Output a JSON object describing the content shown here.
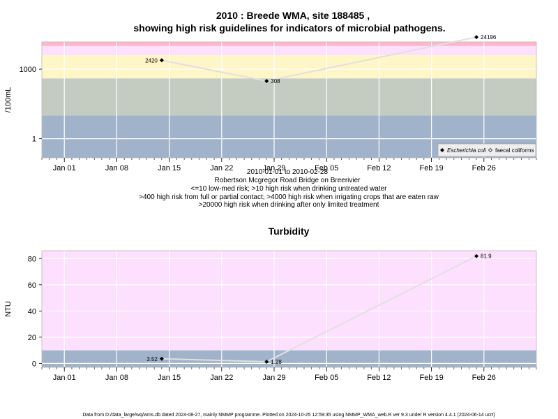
{
  "header": {
    "title_line1": "2010 : Breede WMA, site 188485 ,",
    "title_line2": "showing high risk guidelines for indicators of microbial pathogens."
  },
  "microbial_notes": [
    "2010-01-01 to 2010-02-28",
    "Robertson Mcgregor Road Bridge on Breerivier",
    "<=10 low-med risk; >10 high risk when drinking untreated water",
    ">400 high risk from full or partial contact; >4000 high risk when irrigating crops that are eaten raw",
    ">20000 high risk when drinking after only limited treatment"
  ],
  "footer": "Data from D:/data_large/wq/wms.db dated 2024-08-27, mainly NMMP programme. Plotted on 2024-10-25 12:59:35 using NMMP_WMA_web.R ver 9.3 under R version 4.4.1 (2024-06-14 ucrt)",
  "colors": {
    "band_blue": "#a1b3ca",
    "band_grey": "#c4cbc0",
    "band_yellow": "#fff6c8",
    "band_pink": "#fde0fd",
    "band_red": "#fdb7c9",
    "grid": "#ffffff",
    "line": "#e0e0e0",
    "point": "#000000"
  },
  "chart_data": [
    {
      "type": "line",
      "title": "2010 : Breede WMA, site 188485 , showing high risk guidelines for indicators of microbial pathogens.",
      "ylabel": "/100mL",
      "yscale": "log10",
      "ylim": [
        0.15,
        15000
      ],
      "yticks": [
        1,
        1000
      ],
      "ytick_labels": [
        "1",
        "1000"
      ],
      "xlim": [
        "2009-12-29",
        "2010-03-05"
      ],
      "xticks": [
        "2010-01-01",
        "2010-01-08",
        "2010-01-15",
        "2010-01-22",
        "2010-01-29",
        "2010-02-05",
        "2010-02-12",
        "2010-02-19",
        "2010-02-26"
      ],
      "xtick_labels": [
        "Jan 01",
        "Jan 08",
        "Jan 15",
        "Jan 22",
        "Jan 29",
        "Feb 05",
        "Feb 12",
        "Feb 19",
        "Feb 26"
      ],
      "bands": [
        {
          "from": 0.15,
          "to": 10,
          "color": "#a1b3ca"
        },
        {
          "from": 10,
          "to": 400,
          "color": "#c4cbc0"
        },
        {
          "from": 400,
          "to": 4000,
          "color": "#fff6c8"
        },
        {
          "from": 4000,
          "to": 10000,
          "color": "#fde0fd"
        },
        {
          "from": 10000,
          "to": 15000,
          "color": "#fdb7c9"
        }
      ],
      "series": [
        {
          "name": "Escherichia coli",
          "marker": "filled-diamond",
          "x": [
            "2010-01-14",
            "2010-01-28",
            "2010-02-25"
          ],
          "y": [
            2420,
            308,
            24196
          ],
          "labels": [
            "2420",
            "308",
            "24196"
          ]
        }
      ],
      "legend": {
        "position": "bottom-right",
        "entries": [
          {
            "label": "Escherichia coli",
            "marker": "filled-diamond",
            "italic": true
          },
          {
            "label": "faecal coliforms",
            "marker": "open-diamond",
            "italic": false
          }
        ]
      },
      "grid": true
    },
    {
      "type": "line",
      "title": "Turbidity",
      "ylabel": "NTU",
      "ylim": [
        -3,
        86
      ],
      "yticks": [
        0,
        20,
        40,
        60,
        80
      ],
      "ytick_labels": [
        "0",
        "20",
        "40",
        "60",
        "80"
      ],
      "xlim": [
        "2009-12-29",
        "2010-03-05"
      ],
      "xticks": [
        "2010-01-01",
        "2010-01-08",
        "2010-01-15",
        "2010-01-22",
        "2010-01-29",
        "2010-02-05",
        "2010-02-12",
        "2010-02-19",
        "2010-02-26"
      ],
      "xtick_labels": [
        "Jan 01",
        "Jan 08",
        "Jan 15",
        "Jan 22",
        "Jan 29",
        "Feb 05",
        "Feb 12",
        "Feb 19",
        "Feb 26"
      ],
      "bands": [
        {
          "from": -3,
          "to": 10,
          "color": "#a1b3ca"
        },
        {
          "from": 10,
          "to": 86,
          "color": "#fde0fd"
        }
      ],
      "series": [
        {
          "name": "",
          "marker": "filled-diamond",
          "x": [
            "2010-01-14",
            "2010-01-28",
            "2010-02-25"
          ],
          "y": [
            3.52,
            1.28,
            81.9
          ],
          "labels": [
            "3.52",
            "1.28",
            "81.9"
          ]
        }
      ],
      "grid": true
    }
  ]
}
